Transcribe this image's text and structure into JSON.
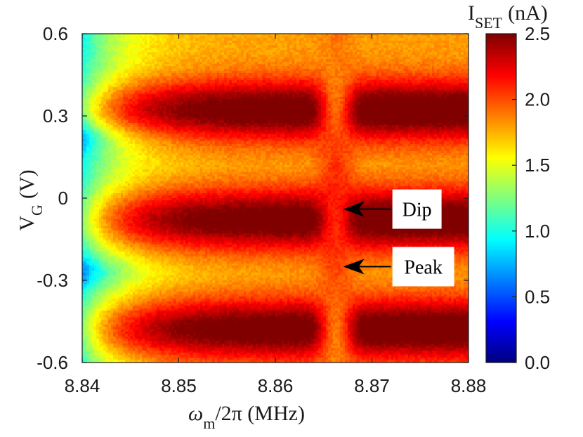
{
  "chart_data": {
    "type": "heatmap",
    "title": "",
    "xlabel": {
      "main": "ω",
      "sub": "m",
      "rest": "/2π (MHz)"
    },
    "ylabel": {
      "main": "V",
      "sub": "G",
      "rest": "(V)"
    },
    "xlim": [
      8.84,
      8.88
    ],
    "ylim": [
      -0.6,
      0.6
    ],
    "x_ticks": [
      8.84,
      8.85,
      8.86,
      8.87,
      8.88
    ],
    "x_tick_labels": [
      "8.84",
      "8.85",
      "8.86",
      "8.87",
      "8.88"
    ],
    "y_ticks": [
      0.6,
      0.3,
      0,
      -0.3,
      -0.6
    ],
    "y_tick_labels": [
      "0.6",
      "0.3",
      "0",
      "-0.3",
      "-0.6"
    ],
    "colorbar": {
      "label": {
        "main": "I",
        "sub": "SET",
        "rest": "(nA)"
      },
      "range": [
        0.0,
        2.5
      ],
      "ticks": [
        2.5,
        2.0,
        1.5,
        1.0,
        0.5,
        0.0
      ],
      "tick_labels": [
        "2.5",
        "2.0",
        "1.5",
        "1.0",
        "0.5",
        "0.0"
      ],
      "colormap": "jet"
    },
    "features": {
      "current_maxima_vg": [
        -0.48,
        -0.08,
        0.32
      ],
      "current_minima_vg": [
        -0.27,
        0.22
      ],
      "resonance_frequency_mhz": 8.8663,
      "resonance_linewidth_mhz": 0.0018
    },
    "annotations": [
      {
        "text": "Dip",
        "x": 8.8663,
        "y": -0.04
      },
      {
        "text": "Peak",
        "x": 8.8663,
        "y": -0.25
      }
    ]
  },
  "colors": {
    "axis": "#1a1a1a",
    "annotation_box": "#ffffff",
    "arrow": "#000000"
  }
}
